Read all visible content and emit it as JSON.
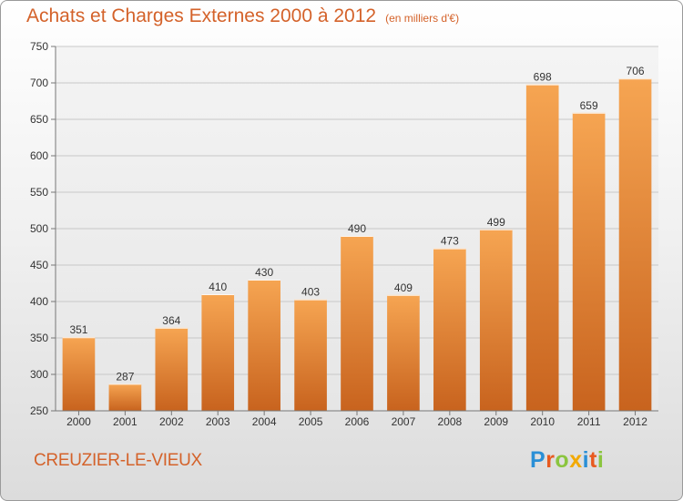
{
  "header": {
    "title": "Achats et Charges Externes 2000 à 2012",
    "unit": "(en milliers d'€)"
  },
  "footer": {
    "commune": "CREUZIER-LE-VIEUX",
    "brand_letters": [
      {
        "char": "P",
        "color": "#2a8fd6"
      },
      {
        "char": "r",
        "color": "#e85a1f"
      },
      {
        "char": "o",
        "color": "#8bc53f"
      },
      {
        "char": "x",
        "color": "#f2a900"
      },
      {
        "char": "i",
        "color": "#2a8fd6"
      },
      {
        "char": "t",
        "color": "#e85a1f"
      },
      {
        "char": "i",
        "color": "#8bc53f"
      }
    ]
  },
  "colors": {
    "accent": "#d4622a",
    "bar_top": "#f6a552",
    "bar_bottom": "#c8631e",
    "grid": "#c8c8c8",
    "axis_text": "#333333"
  },
  "chart_data": {
    "type": "bar",
    "title": "Achats et Charges Externes 2000 à 2012",
    "xlabel": "",
    "ylabel": "",
    "categories": [
      "2000",
      "2001",
      "2002",
      "2003",
      "2004",
      "2005",
      "2006",
      "2007",
      "2008",
      "2009",
      "2010",
      "2011",
      "2012"
    ],
    "values": [
      351,
      287,
      364,
      410,
      430,
      403,
      490,
      409,
      473,
      499,
      698,
      659,
      706
    ],
    "ylim": [
      250,
      750
    ],
    "yticks": [
      250,
      300,
      350,
      400,
      450,
      500,
      550,
      600,
      650,
      700,
      750
    ],
    "grid": true,
    "data_labels": true
  }
}
